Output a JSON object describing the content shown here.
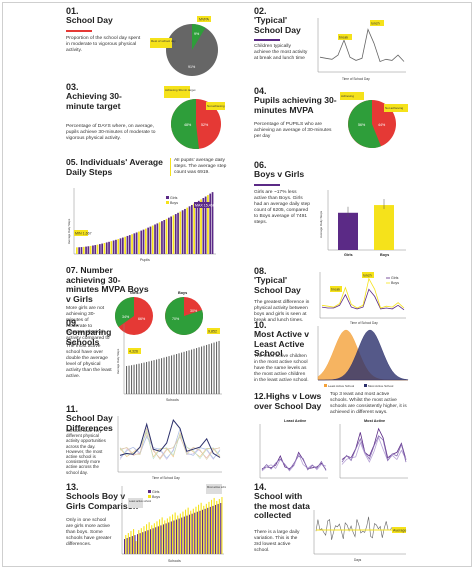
{
  "colors": {
    "red": "#e53935",
    "green": "#2e9e3a",
    "gray": "#666666",
    "purple": "#5b2a86",
    "yellow": "#f5e21b",
    "navy": "#2b2f6b",
    "orange": "#f4a13a",
    "lav": "#b7a3d6"
  },
  "panels": {
    "p1": {
      "num": "01.",
      "title": "School Day",
      "text": "Proportion of the school day spent in moderate to vigorous physical activity.",
      "chart_data": {
        "type": "pie",
        "labels": [
          "MVPA",
          "Rest of school day"
        ],
        "values": [
          9,
          91
        ],
        "slice_labels": [
          "9%",
          "91%"
        ]
      }
    },
    "p2": {
      "num": "02.",
      "title": "'Typical' School Day",
      "text": "Children typically achieve the most activity at break and lunch time",
      "chart_data": {
        "type": "line",
        "xlabel": "Time of School Day",
        "annotations": [
          "break",
          "lunch"
        ],
        "values": [
          12,
          11,
          10,
          14,
          28,
          12,
          9,
          11,
          38,
          25,
          8,
          10,
          9,
          14,
          8
        ]
      }
    },
    "p3": {
      "num": "03.",
      "title": "Achieving 30-minute target",
      "text": "Percentage of DAYS where, on average, pupils achieve 30-minutes of moderate to vigorous physical activity.",
      "chart_data": {
        "type": "pie",
        "labels": [
          "Achieving 30-min target",
          "Not achieving"
        ],
        "values": [
          48,
          52
        ],
        "slice_labels": [
          "48%",
          "52%"
        ]
      }
    },
    "p4": {
      "num": "04.",
      "title": "Pupils achieving 30-minutes MVPA",
      "text": "Percentage of PUPILS who are achieving an average of 30-minutes per day",
      "chart_data": {
        "type": "pie",
        "labels": [
          "Achieving",
          "Not achieving"
        ],
        "values": [
          56,
          44
        ],
        "slice_labels": [
          "56%",
          "44%"
        ]
      }
    },
    "p5": {
      "num": "05. Individuals' Average Daily Steps",
      "note": "All pupils' average daily steps. The average step count was 6919.",
      "chart_data": {
        "type": "bar",
        "xlabel": "Pupils",
        "ylabel": "Average Daily Steps",
        "legend": [
          "Girls",
          "Boys"
        ],
        "annotations": [
          "MIN 1,667",
          "MAX 15,466"
        ],
        "count": 60
      }
    },
    "p6": {
      "num": "06.",
      "title": "Boys v Girls",
      "text": "Girls are ~17% less active than Boys. Girls had an average daily step count of 6205, compared to Boys average of 7491 steps.",
      "chart_data": {
        "type": "bar",
        "categories": [
          "Girls",
          "Boys"
        ],
        "values": [
          6205,
          7491
        ],
        "ylabel": "Average Daily Steps"
      }
    },
    "p7": {
      "num": "07. Number achieving 30-minutes MVPA Boys v Girls",
      "text": "More girls are not achieving 30-minutes of moderate to vigorous physical activity compared to boys.",
      "chart_data": [
        {
          "type": "pie",
          "title": "Girls",
          "labels": [
            "Achieving",
            "Not achieving"
          ],
          "values": [
            34,
            66
          ],
          "slice_labels": [
            "34%",
            "66%"
          ]
        },
        {
          "type": "pie",
          "title": "Boys",
          "labels": [
            "Achieving",
            "Not achieving"
          ],
          "values": [
            70,
            30
          ],
          "slice_labels": [
            "70%",
            "30%"
          ]
        }
      ]
    },
    "p8": {
      "num": "08.",
      "title": "'Typical' School Day",
      "text": "The greatest difference in physical activity between boys and girls is seen at break and lunch times.",
      "chart_data": {
        "type": "line",
        "xlabel": "Time of School Day",
        "legend": [
          "Girls",
          "Boys"
        ],
        "annotations": [
          "break",
          "lunch"
        ],
        "series": [
          {
            "name": "Girls",
            "values": [
              10,
              9,
              9,
              12,
              24,
              10,
              8,
              10,
              30,
              22,
              8,
              9,
              8,
              12,
              7
            ]
          },
          {
            "name": "Boys",
            "values": [
              12,
              11,
              10,
              14,
              32,
              13,
              9,
              12,
              42,
              30,
              9,
              11,
              10,
              15,
              9
            ]
          }
        ]
      }
    },
    "p9": {
      "num": "09.",
      "title": "Comparing Schools",
      "text": "The most active school have over double the average level of physical activity than the least active.",
      "chart_data": {
        "type": "bar",
        "xlabel": "Schools",
        "ylabel": "Average Daily Steps",
        "annotations": [
          "4,326",
          "9,852"
        ],
        "count": 38
      }
    },
    "p10": {
      "num": "10.",
      "title": "Most Active v Least Active School",
      "text": "The least active children in the most active school have the same levels as the most active children in the least active school.",
      "chart_data": {
        "type": "area",
        "legend": [
          "Least Active School",
          "Most Active School"
        ]
      }
    },
    "p11": {
      "num": "11.",
      "title": "School Day Differences",
      "text": "Schools have very different physical activity opportunities across the day. However, the most active school is consistently more active across the school day.",
      "chart_data": {
        "type": "line",
        "xlabel": "Time of School Day"
      }
    },
    "p12": {
      "num": "12.Highs v Lows over School Day",
      "text": "Top 3 least and most active schools. Whilst the most active schools are consistently higher, it is achieved in different ways.",
      "chart_data": [
        {
          "type": "line",
          "title": "Least Active"
        },
        {
          "type": "line",
          "title": "Most Active"
        }
      ]
    },
    "p13": {
      "num": "13.",
      "title": "Schools Boy v Girls Comparison",
      "text": "Only in one school are girls more active than boys. Some schools have greater differences.",
      "chart_data": {
        "type": "bar",
        "xlabel": "Schools",
        "legend": [
          "Girls",
          "Boys"
        ],
        "annotations": [
          "Least active school",
          "Most active school"
        ],
        "count": 38
      }
    },
    "p14": {
      "num": "14.",
      "title": "School with the most data collected",
      "text": "There is a large daily variation. This is the 3rd lowest active school.",
      "chart_data": {
        "type": "line",
        "xlabel": "Days",
        "annotations": [
          "Average"
        ]
      }
    }
  }
}
